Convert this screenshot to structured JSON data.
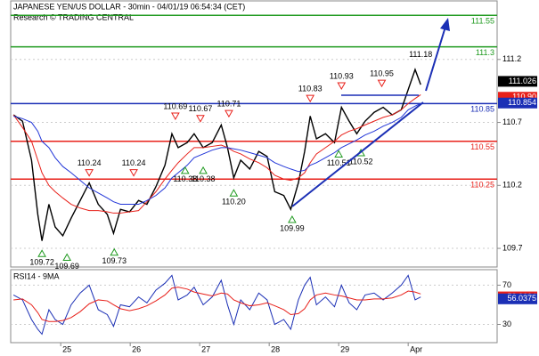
{
  "chart_data": [
    {
      "type": "line",
      "title": "JAPANESE YEN/US DOLLAR - 30min - 04/01/19 06:54:34 (CET)",
      "subtitle": "Research © TRADING CENTRAL",
      "x": [
        24.32,
        24.45,
        24.58,
        24.67,
        24.73,
        24.83,
        24.92,
        25.03,
        25.15,
        25.28,
        25.41,
        25.54,
        25.67,
        25.76,
        25.86,
        25.99,
        26.12,
        26.24,
        26.37,
        26.5,
        26.6,
        26.69,
        26.82,
        26.92,
        27.05,
        27.18,
        27.31,
        27.4,
        27.49,
        27.59,
        27.72,
        27.85,
        27.97,
        28.08,
        28.21,
        28.31,
        28.42,
        28.51,
        28.59,
        28.68,
        28.81,
        28.94,
        29.04,
        29.15,
        29.26,
        29.38,
        29.51,
        29.64,
        29.77,
        29.9,
        30.0,
        30.1,
        30.18
      ],
      "series": [
        {
          "color": "#000000",
          "values": [
            110.76,
            110.71,
            110.4,
            109.97,
            109.76,
            110.05,
            109.87,
            109.8,
            109.94,
            110.08,
            110.22,
            110.05,
            109.97,
            109.82,
            110.01,
            109.99,
            110.08,
            110.05,
            110.19,
            110.36,
            110.61,
            110.5,
            110.54,
            110.61,
            110.5,
            110.54,
            110.68,
            110.5,
            110.26,
            110.4,
            110.33,
            110.47,
            110.43,
            110.15,
            110.12,
            110.01,
            110.22,
            110.47,
            110.75,
            110.57,
            110.61,
            110.54,
            110.82,
            110.71,
            110.61,
            110.71,
            110.78,
            110.82,
            110.76,
            110.8,
            110.96,
            111.12,
            111.0
          ]
        },
        {
          "color": "#e8201a",
          "values": [
            110.76,
            110.66,
            110.55,
            110.4,
            110.3,
            110.2,
            110.15,
            110.1,
            110.05,
            110.02,
            110.0,
            110.0,
            109.99,
            109.98,
            109.98,
            109.99,
            110.0,
            110.07,
            110.15,
            110.25,
            110.32,
            110.38,
            110.45,
            110.5,
            110.5,
            110.51,
            110.52,
            110.5,
            110.47,
            110.45,
            110.41,
            110.38,
            110.34,
            110.28,
            110.25,
            110.24,
            110.26,
            110.3,
            110.38,
            110.45,
            110.5,
            110.55,
            110.6,
            110.63,
            110.65,
            110.68,
            110.71,
            110.74,
            110.76,
            110.8,
            110.85,
            110.89,
            110.92
          ]
        },
        {
          "color": "#2236d8",
          "values": [
            110.75,
            110.73,
            110.7,
            110.63,
            110.55,
            110.5,
            110.42,
            110.35,
            110.3,
            110.24,
            110.18,
            110.14,
            110.1,
            110.07,
            110.05,
            110.05,
            110.05,
            110.08,
            110.12,
            110.18,
            110.26,
            110.3,
            110.36,
            110.42,
            110.45,
            110.48,
            110.5,
            110.5,
            110.49,
            110.48,
            110.46,
            110.44,
            110.42,
            110.38,
            110.35,
            110.33,
            110.31,
            110.32,
            110.36,
            110.38,
            110.42,
            110.46,
            110.5,
            110.53,
            110.56,
            110.6,
            110.63,
            110.67,
            110.7,
            110.74,
            110.8,
            110.83,
            110.85
          ]
        }
      ],
      "xlim": [
        24.28,
        31.28
      ],
      "xticks": [
        25,
        26,
        27,
        28,
        29,
        {
          "value": 30,
          "label": "Apr"
        }
      ],
      "ylim": [
        109.552,
        111.665
      ],
      "yticks": [
        109.7,
        110.2,
        110.7,
        111.2
      ],
      "levels": [
        {
          "value": 111.55,
          "color": "#1f9a1f"
        },
        {
          "value": 111.3,
          "color": "#1f9a1f"
        },
        {
          "value": 110.85,
          "color": "#1b2fb5"
        },
        {
          "value": 110.55,
          "color": "#e8201a"
        },
        {
          "value": 110.25,
          "color": "#e8201a"
        }
      ],
      "price_labels": [
        {
          "value": 111.026,
          "color": "#000000"
        },
        {
          "value": {
            "value": 110.9,
            "label": "110.90"
          },
          "color": "#e8201a"
        },
        {
          "value": 110.854,
          "color": "#1b2fb5"
        }
      ],
      "annotations": [
        {
          "x": 25.41,
          "value": 110.24,
          "dir": "high"
        },
        {
          "x": 26.05,
          "value": 110.24,
          "dir": "high"
        },
        {
          "x": 26.65,
          "value": 110.69,
          "dir": "high"
        },
        {
          "x": 27.01,
          "value": 110.67,
          "dir": "high"
        },
        {
          "x": 27.42,
          "value": 110.71,
          "dir": "high"
        },
        {
          "x": 28.59,
          "value": 110.83,
          "dir": "high"
        },
        {
          "x": 29.04,
          "value": 110.93,
          "dir": "high"
        },
        {
          "x": 29.62,
          "value": 110.95,
          "dir": "high"
        },
        {
          "x": 30.18,
          "value": 111.18,
          "dir": "top"
        },
        {
          "x": 24.73,
          "value": 109.72,
          "dir": "low"
        },
        {
          "x": 25.09,
          "value": 109.69,
          "dir": "low"
        },
        {
          "x": 25.77,
          "value": 109.73,
          "dir": "low"
        },
        {
          "x": 26.79,
          "value": 110.38,
          "dir": "low"
        },
        {
          "x": 27.05,
          "value": 110.38,
          "dir": "low"
        },
        {
          "x": 27.49,
          "value": {
            "value": 110.2,
            "label": "110.20"
          },
          "dir": "low"
        },
        {
          "x": 28.33,
          "value": 109.99,
          "dir": "low"
        },
        {
          "x": 29.0,
          "value": 110.51,
          "dir": "low"
        },
        {
          "x": 29.32,
          "value": 110.52,
          "dir": "low"
        }
      ]
    },
    {
      "type": "line",
      "title": "RSI14 - 9MA",
      "x": [
        24.32,
        24.45,
        24.58,
        24.67,
        24.73,
        24.83,
        24.92,
        25.03,
        25.15,
        25.28,
        25.41,
        25.54,
        25.67,
        25.76,
        25.86,
        25.99,
        26.12,
        26.24,
        26.37,
        26.5,
        26.6,
        26.69,
        26.82,
        26.92,
        27.05,
        27.18,
        27.31,
        27.4,
        27.49,
        27.59,
        27.72,
        27.85,
        27.97,
        28.08,
        28.21,
        28.31,
        28.42,
        28.51,
        28.59,
        28.68,
        28.81,
        28.94,
        29.04,
        29.15,
        29.26,
        29.38,
        29.51,
        29.64,
        29.77,
        29.9,
        30.0,
        30.1,
        30.18
      ],
      "series": [
        {
          "color": "#1b2fb5",
          "values": [
            60,
            55,
            35,
            25,
            20,
            45,
            35,
            30,
            50,
            62,
            70,
            45,
            40,
            28,
            50,
            48,
            58,
            52,
            65,
            72,
            80,
            55,
            60,
            68,
            50,
            58,
            75,
            50,
            30,
            55,
            45,
            62,
            55,
            30,
            35,
            25,
            55,
            70,
            78,
            50,
            58,
            48,
            70,
            52,
            45,
            60,
            62,
            55,
            62,
            70,
            80,
            55,
            58
          ]
        },
        {
          "color": "#e8201a",
          "values": [
            55,
            56,
            50,
            42,
            35,
            33,
            33,
            34,
            37,
            43,
            51,
            55,
            54,
            50,
            46,
            44,
            46,
            49,
            54,
            60,
            67,
            68,
            66,
            63,
            61,
            59,
            62,
            61,
            55,
            52,
            49,
            50,
            52,
            49,
            45,
            40,
            41,
            46,
            55,
            60,
            62,
            60,
            59,
            57,
            55,
            55,
            56,
            56,
            57,
            60,
            64,
            63,
            61
          ]
        }
      ],
      "xlim": [
        24.28,
        31.28
      ],
      "ylim": [
        11.4,
        85.8
      ],
      "yticks": [
        30,
        70
      ],
      "price_labels": [
        {
          "value": 58.0604,
          "color": "#e8201a"
        },
        {
          "value": 56.0375,
          "color": "#1b2fb5"
        }
      ]
    }
  ]
}
